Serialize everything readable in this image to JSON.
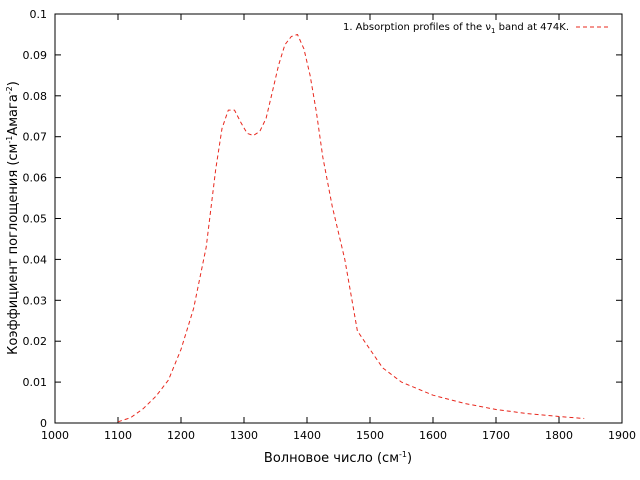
{
  "chart_data": {
    "type": "line",
    "xlabel": "Волновое число (см",
    "xlabel_sup": "-1",
    "xlabel_end": ")",
    "ylabel": "Коэффициент поглощения (см",
    "ylabel_sup1": "-1",
    "ylabel_mid": "Амага",
    "ylabel_sup2": "-2",
    "ylabel_end": ")",
    "xlim": [
      1000,
      1900
    ],
    "ylim": [
      0,
      0.1
    ],
    "x_tick_labels": [
      "1000",
      "1100",
      "1200",
      "1300",
      "1400",
      "1500",
      "1600",
      "1700",
      "1800",
      "1900"
    ],
    "y_tick_labels": [
      "0",
      "0.01",
      "0.02",
      "0.03",
      "0.04",
      "0.05",
      "0.06",
      "0.07",
      "0.08",
      "0.09",
      "0.1"
    ],
    "grid": false,
    "legend_position": "top-right",
    "series": [
      {
        "name": "1. Absorption profiles of the ν",
        "name_sub": "1",
        "name_end": " band at 474K.",
        "color": "#e8281e",
        "style": "dashed",
        "x": [
          1100,
          1120,
          1140,
          1160,
          1180,
          1200,
          1220,
          1240,
          1255,
          1265,
          1275,
          1285,
          1295,
          1305,
          1315,
          1325,
          1335,
          1345,
          1355,
          1365,
          1375,
          1385,
          1395,
          1405,
          1415,
          1425,
          1440,
          1460,
          1480,
          1500,
          1520,
          1550,
          1600,
          1650,
          1700,
          1750,
          1800,
          1840
        ],
        "y": [
          0.0003,
          0.0013,
          0.0035,
          0.0065,
          0.0105,
          0.018,
          0.028,
          0.043,
          0.062,
          0.072,
          0.0765,
          0.0765,
          0.0735,
          0.0708,
          0.0703,
          0.0713,
          0.0745,
          0.081,
          0.0875,
          0.0925,
          0.0945,
          0.095,
          0.0915,
          0.085,
          0.076,
          0.065,
          0.053,
          0.04,
          0.0225,
          0.018,
          0.0135,
          0.01,
          0.0068,
          0.0048,
          0.0033,
          0.0023,
          0.0016,
          0.0011
        ]
      }
    ]
  }
}
